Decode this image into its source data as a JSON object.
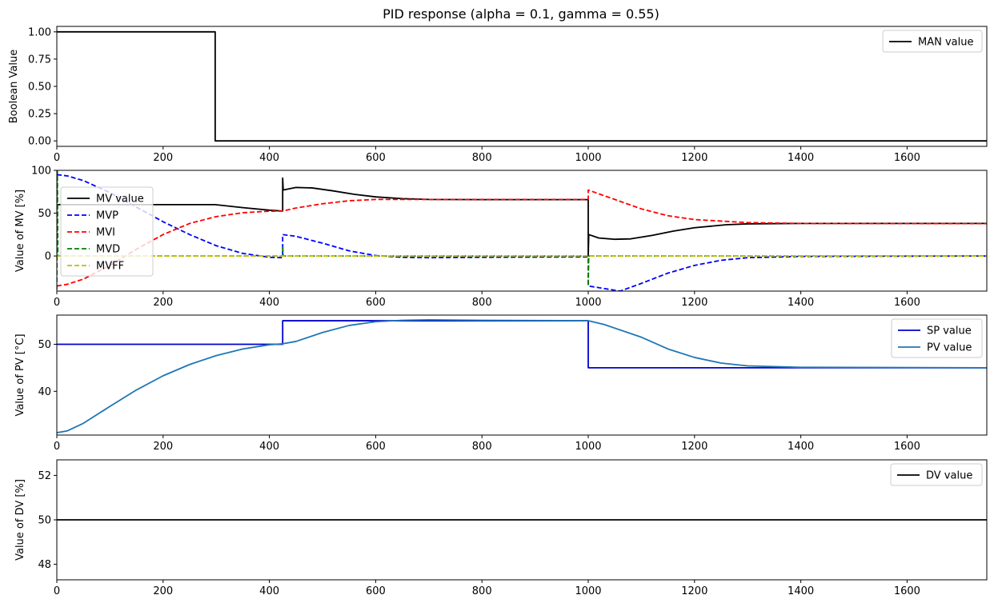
{
  "figure": {
    "title": "PID response (alpha = 0.1, gamma = 0.55)"
  },
  "chart_data": [
    {
      "type": "line",
      "ylabel": "Boolean Value",
      "xlim": [
        0,
        1750
      ],
      "ylim": [
        -0.05,
        1.05
      ],
      "xticks": [
        0,
        200,
        400,
        600,
        800,
        1000,
        1200,
        1400,
        1600
      ],
      "yticks": [
        0.0,
        0.25,
        0.5,
        0.75,
        1.0
      ],
      "ytick_labels": [
        "0.00",
        "0.25",
        "0.50",
        "0.75",
        "1.00"
      ],
      "legend": "top-right",
      "series": [
        {
          "name": "MAN value",
          "color": "#000000",
          "dash": "solid",
          "points": [
            [
              0,
              1
            ],
            [
              298,
              1
            ],
            [
              298,
              0
            ],
            [
              1750,
              0
            ]
          ]
        }
      ]
    },
    {
      "type": "line",
      "ylabel": "Value of MV [%]",
      "xlim": [
        0,
        1750
      ],
      "ylim": [
        -41,
        100
      ],
      "xticks": [
        0,
        200,
        400,
        600,
        800,
        1000,
        1200,
        1400,
        1600
      ],
      "yticks": [
        0,
        50,
        100
      ],
      "ytick_labels": [
        "0",
        "50",
        "100"
      ],
      "legend": "center-left",
      "series": [
        {
          "name": "MV value",
          "color": "#000000",
          "dash": "solid",
          "points": [
            [
              0,
              60
            ],
            [
              298,
              60
            ],
            [
              350,
              56.5
            ],
            [
              400,
              53.5
            ],
            [
              425,
              52.5
            ],
            [
              425,
              91
            ],
            [
              426,
              77
            ],
            [
              450,
              80
            ],
            [
              480,
              79.5
            ],
            [
              520,
              76
            ],
            [
              560,
              72
            ],
            [
              600,
              69
            ],
            [
              650,
              67
            ],
            [
              700,
              66
            ],
            [
              800,
              65.8
            ],
            [
              1000,
              65.8
            ],
            [
              1000,
              0
            ],
            [
              1001,
              25
            ],
            [
              1020,
              21
            ],
            [
              1050,
              19.5
            ],
            [
              1080,
              20
            ],
            [
              1120,
              24
            ],
            [
              1160,
              29
            ],
            [
              1200,
              33
            ],
            [
              1260,
              36.5
            ],
            [
              1300,
              37.5
            ],
            [
              1400,
              38
            ],
            [
              1750,
              38
            ]
          ]
        },
        {
          "name": "MVP",
          "color": "#0000ff",
          "dash": "dashed",
          "points": [
            [
              0,
              95
            ],
            [
              20,
              93.5
            ],
            [
              50,
              88
            ],
            [
              100,
              74
            ],
            [
              150,
              57
            ],
            [
              200,
              40
            ],
            [
              250,
              25
            ],
            [
              300,
              12
            ],
            [
              350,
              3
            ],
            [
              400,
              -1.5
            ],
            [
              425,
              -2
            ],
            [
              425,
              25
            ],
            [
              450,
              23
            ],
            [
              500,
              15
            ],
            [
              550,
              6
            ],
            [
              600,
              0.5
            ],
            [
              650,
              -1.5
            ],
            [
              700,
              -2
            ],
            [
              800,
              -1.5
            ],
            [
              1000,
              -1
            ],
            [
              1000,
              -35
            ],
            [
              1060,
              -41
            ],
            [
              1100,
              -32
            ],
            [
              1150,
              -20
            ],
            [
              1200,
              -11
            ],
            [
              1250,
              -5
            ],
            [
              1300,
              -2
            ],
            [
              1400,
              -0.5
            ],
            [
              1750,
              0
            ]
          ]
        },
        {
          "name": "MVI",
          "color": "#ff0000",
          "dash": "dashed",
          "points": [
            [
              0,
              -35
            ],
            [
              20,
              -33
            ],
            [
              50,
              -27
            ],
            [
              100,
              -11
            ],
            [
              150,
              8
            ],
            [
              200,
              25
            ],
            [
              250,
              38
            ],
            [
              300,
              46
            ],
            [
              350,
              50.5
            ],
            [
              400,
              52.3
            ],
            [
              425,
              52.5
            ],
            [
              450,
              56
            ],
            [
              500,
              61
            ],
            [
              550,
              64.5
            ],
            [
              600,
              66
            ],
            [
              700,
              66
            ],
            [
              1000,
              66
            ],
            [
              1000,
              77
            ],
            [
              1050,
              66
            ],
            [
              1100,
              55
            ],
            [
              1150,
              47
            ],
            [
              1200,
              42.5
            ],
            [
              1300,
              39
            ],
            [
              1400,
              38
            ],
            [
              1750,
              37.8
            ]
          ]
        },
        {
          "name": "MVD",
          "color": "#008000",
          "dash": "dashed",
          "points": [
            [
              0,
              -39
            ],
            [
              1,
              99
            ],
            [
              2,
              0
            ],
            [
              425,
              0
            ],
            [
              425,
              12
            ],
            [
              426,
              0
            ],
            [
              1000,
              0
            ],
            [
              1000,
              -35
            ],
            [
              1001,
              0
            ],
            [
              1750,
              0
            ]
          ]
        },
        {
          "name": "MVFF",
          "color": "#bfbf00",
          "dash": "dashed",
          "points": [
            [
              0,
              0
            ],
            [
              1750,
              0
            ]
          ]
        }
      ]
    },
    {
      "type": "line",
      "ylabel": "Value of PV [°C]",
      "xlim": [
        0,
        1750
      ],
      "ylim": [
        30.7,
        56.2
      ],
      "xticks": [
        0,
        200,
        400,
        600,
        800,
        1000,
        1200,
        1400,
        1600
      ],
      "yticks": [
        40,
        50
      ],
      "ytick_labels": [
        "40",
        "50"
      ],
      "legend": "top-right",
      "series": [
        {
          "name": "SP value",
          "color": "#0000cd",
          "dash": "solid",
          "points": [
            [
              0,
              50
            ],
            [
              425,
              50
            ],
            [
              425,
              55
            ],
            [
              1000,
              55
            ],
            [
              1000,
              45
            ],
            [
              1750,
              45
            ]
          ]
        },
        {
          "name": "PV value",
          "color": "#1f77b4",
          "dash": "solid",
          "points": [
            [
              0,
              31.2
            ],
            [
              20,
              31.6
            ],
            [
              50,
              33.2
            ],
            [
              100,
              36.8
            ],
            [
              150,
              40.3
            ],
            [
              200,
              43.3
            ],
            [
              250,
              45.7
            ],
            [
              300,
              47.6
            ],
            [
              350,
              49
            ],
            [
              400,
              49.9
            ],
            [
              425,
              50.1
            ],
            [
              450,
              50.6
            ],
            [
              500,
              52.5
            ],
            [
              550,
              54
            ],
            [
              600,
              54.8
            ],
            [
              650,
              55.1
            ],
            [
              700,
              55.2
            ],
            [
              800,
              55.1
            ],
            [
              1000,
              55
            ],
            [
              1030,
              54.2
            ],
            [
              1100,
              51.5
            ],
            [
              1150,
              49
            ],
            [
              1200,
              47.2
            ],
            [
              1250,
              46
            ],
            [
              1300,
              45.4
            ],
            [
              1400,
              45.1
            ],
            [
              1750,
              45
            ]
          ]
        }
      ]
    },
    {
      "type": "line",
      "ylabel": "Value of DV [%]",
      "xlim": [
        0,
        1750
      ],
      "ylim": [
        47.3,
        52.7
      ],
      "xticks": [
        0,
        200,
        400,
        600,
        800,
        1000,
        1200,
        1400,
        1600
      ],
      "yticks": [
        48,
        50,
        52
      ],
      "ytick_labels": [
        "48",
        "50",
        "52"
      ],
      "legend": "top-right",
      "series": [
        {
          "name": "DV value",
          "color": "#000000",
          "dash": "solid",
          "points": [
            [
              0,
              50
            ],
            [
              1750,
              50
            ]
          ]
        }
      ]
    }
  ]
}
